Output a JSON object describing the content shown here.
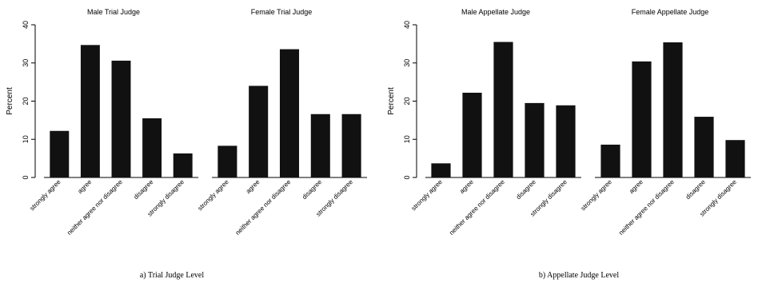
{
  "chart_data": [
    {
      "type": "bar",
      "caption": "a) Trial Judge Level",
      "ylabel": "Percent",
      "ylim": [
        0,
        40
      ],
      "yticks": [
        0,
        10,
        20,
        30,
        40
      ],
      "categories": [
        "strongly agree",
        "agree",
        "neither agree nor disagree",
        "disagree",
        "strongly disagree"
      ],
      "panels": [
        {
          "title": "Male Trial Judge",
          "values": [
            12.2,
            34.7,
            30.6,
            15.5,
            6.3
          ]
        },
        {
          "title": "Female Trial Judge",
          "values": [
            8.3,
            24.0,
            33.6,
            16.6,
            16.6
          ]
        }
      ],
      "bar_color": "#111111",
      "grid": false
    },
    {
      "type": "bar",
      "caption": "b) Appellate Judge Level",
      "ylabel": "Percent",
      "ylim": [
        0,
        40
      ],
      "yticks": [
        0,
        10,
        20,
        30,
        40
      ],
      "categories": [
        "strongly agree",
        "agree",
        "neither agree nor disagree",
        "disagree",
        "strongly disagree"
      ],
      "panels": [
        {
          "title": "Male Appellate Judge",
          "values": [
            3.7,
            22.2,
            35.5,
            19.5,
            18.9
          ]
        },
        {
          "title": "Female Appellate Judge",
          "values": [
            8.6,
            30.4,
            35.4,
            15.9,
            9.8
          ]
        }
      ],
      "bar_color": "#111111",
      "grid": false
    }
  ]
}
